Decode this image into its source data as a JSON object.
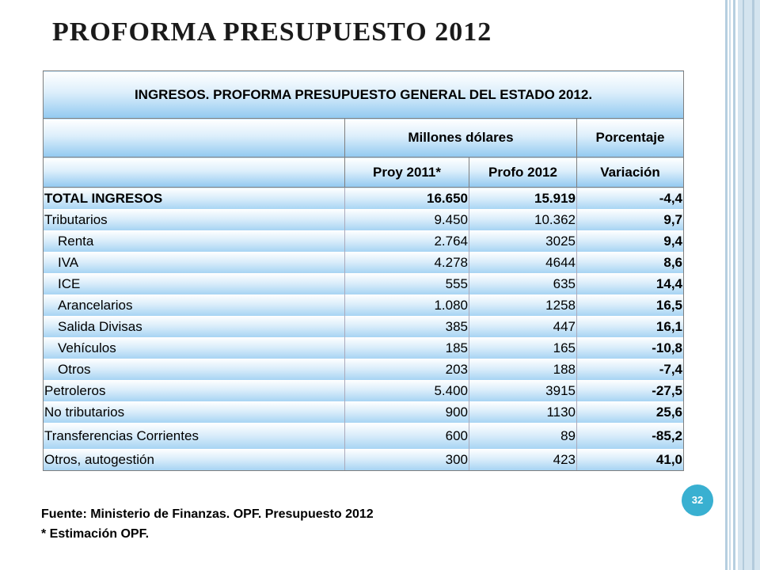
{
  "slide": {
    "title": "PROFORMA PRESUPUESTO 2012",
    "page_number": "32"
  },
  "table": {
    "title": "INGRESOS. PROFORMA PRESUPUESTO GENERAL DEL ESTADO 2012.",
    "header_group": {
      "millones": "Millones dólares",
      "porcentaje": "Porcentaje"
    },
    "columns": {
      "proy": "Proy 2011*",
      "profo": "Profo 2012",
      "variacion": "Variación"
    },
    "rows": [
      {
        "label": "TOTAL INGRESOS",
        "proy": "16.650",
        "profo": "15.919",
        "var": "-4,4"
      },
      {
        "label": "Tributarios",
        "proy": "9.450",
        "profo": "10.362",
        "var": "9,7"
      },
      {
        "label": "Renta",
        "proy": "2.764",
        "profo": "3025",
        "var": "9,4"
      },
      {
        "label": "IVA",
        "proy": "4.278",
        "profo": "4644",
        "var": "8,6"
      },
      {
        "label": "ICE",
        "proy": "555",
        "profo": "635",
        "var": "14,4"
      },
      {
        "label": "Arancelarios",
        "proy": "1.080",
        "profo": "1258",
        "var": "16,5"
      },
      {
        "label": "Salida Divisas",
        "proy": "385",
        "profo": "447",
        "var": "16,1"
      },
      {
        "label": "Vehículos",
        "proy": "185",
        "profo": "165",
        "var": "-10,8"
      },
      {
        "label": "Otros",
        "proy": "203",
        "profo": "188",
        "var": "-7,4"
      },
      {
        "label": "Petroleros",
        "proy": "5.400",
        "profo": "3915",
        "var": "-27,5"
      },
      {
        "label": "No tributarios",
        "proy": "900",
        "profo": "1130",
        "var": "25,6"
      },
      {
        "label": "Transferencias Corrientes",
        "proy": "600",
        "profo": "89",
        "var": "-85,2"
      },
      {
        "label": "Otros, autogestión",
        "proy": "300",
        "profo": "423",
        "var": "41,0"
      }
    ]
  },
  "footer": {
    "source": "Fuente: Ministerio de Finanzas. OPF. Presupuesto 2012",
    "note": "* Estimación OPF."
  },
  "colors": {
    "header_gradient_end": "#92c9f0",
    "page_badge": "#39b0d1"
  }
}
